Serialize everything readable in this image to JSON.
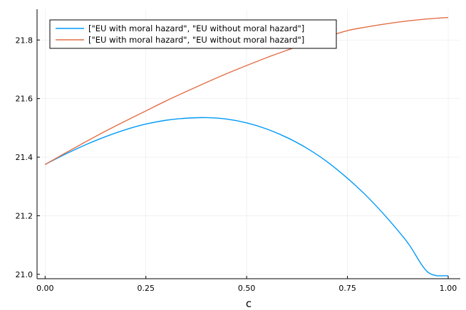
{
  "chart_data": {
    "type": "line",
    "title": "",
    "xlabel": "c",
    "ylabel": "",
    "xlim": [
      -0.02,
      1.03
    ],
    "ylim": [
      20.985,
      21.905
    ],
    "grid": true,
    "legend_position": "top-left",
    "x_ticks": [
      {
        "value": 0.0,
        "label": "0.00"
      },
      {
        "value": 0.25,
        "label": "0.25"
      },
      {
        "value": 0.5,
        "label": "0.50"
      },
      {
        "value": 0.75,
        "label": "0.75"
      },
      {
        "value": 1.0,
        "label": "1.00"
      }
    ],
    "y_ticks": [
      {
        "value": 21.0,
        "label": "21.0"
      },
      {
        "value": 21.2,
        "label": "21.2"
      },
      {
        "value": 21.4,
        "label": "21.4"
      },
      {
        "value": 21.6,
        "label": "21.6"
      },
      {
        "value": 21.8,
        "label": "21.8"
      }
    ],
    "x": [
      0.0,
      0.05,
      0.1,
      0.15,
      0.2,
      0.25,
      0.3,
      0.35,
      0.4,
      0.45,
      0.5,
      0.55,
      0.6,
      0.65,
      0.7,
      0.75,
      0.8,
      0.85,
      0.9,
      0.95,
      1.0
    ],
    "series": [
      {
        "name": "[\"EU with moral hazard\", \"EU without moral hazard\"]",
        "color": "#009AFA",
        "values": [
          21.375,
          21.41,
          21.442,
          21.47,
          21.494,
          21.513,
          21.526,
          21.533,
          21.535,
          21.53,
          21.517,
          21.496,
          21.467,
          21.43,
          21.384,
          21.328,
          21.264,
          21.19,
          21.107,
          21.007,
          20.995
        ]
      },
      {
        "name": "[\"EU with moral hazard\", \"EU without moral hazard\"]",
        "color": "#E36F47",
        "values": [
          21.375,
          21.414,
          21.452,
          21.489,
          21.524,
          21.558,
          21.592,
          21.624,
          21.655,
          21.685,
          21.713,
          21.74,
          21.765,
          21.789,
          21.811,
          21.832,
          21.845,
          21.856,
          21.865,
          21.872,
          21.877
        ]
      }
    ]
  }
}
